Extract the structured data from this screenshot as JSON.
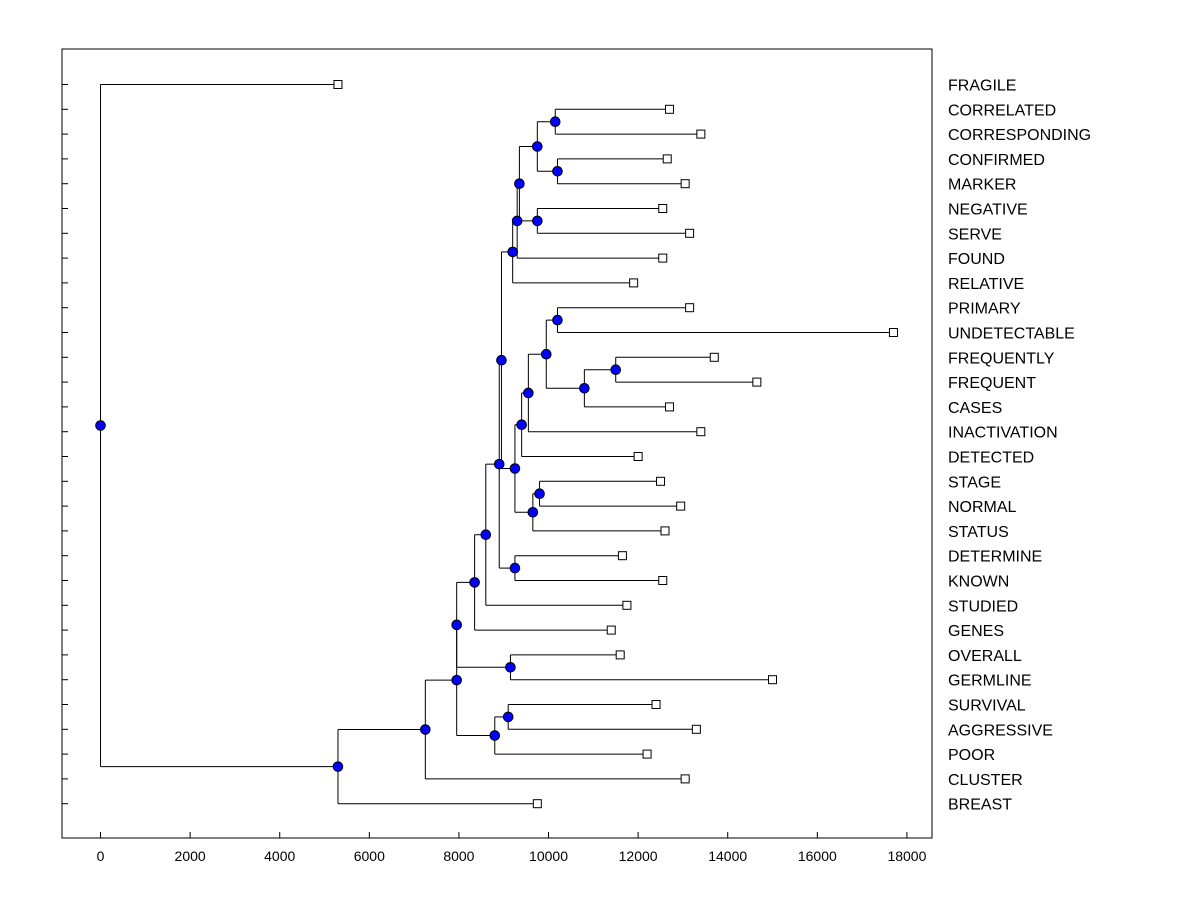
{
  "chart_data": {
    "type": "dendrogram",
    "orientation": "horizontal",
    "x_axis": {
      "range": [
        -860,
        18560
      ],
      "ticks": [
        0,
        2000,
        4000,
        6000,
        8000,
        10000,
        12000,
        14000,
        16000,
        18000
      ],
      "tick_labels": [
        "0",
        "2000",
        "4000",
        "6000",
        "8000",
        "10000",
        "12000",
        "14000",
        "16000",
        "18000"
      ]
    },
    "leaves": [
      {
        "label": "FRAGILE",
        "x": 5300
      },
      {
        "label": "CORRELATED",
        "x": 12700
      },
      {
        "label": "CORRESPONDING",
        "x": 13400
      },
      {
        "label": "CONFIRMED",
        "x": 12650
      },
      {
        "label": "MARKER",
        "x": 13050
      },
      {
        "label": "NEGATIVE",
        "x": 12550
      },
      {
        "label": "SERVE",
        "x": 13150
      },
      {
        "label": "FOUND",
        "x": 12550
      },
      {
        "label": "RELATIVE",
        "x": 11900
      },
      {
        "label": "PRIMARY",
        "x": 13150
      },
      {
        "label": "UNDETECTABLE",
        "x": 17700
      },
      {
        "label": "FREQUENTLY",
        "x": 13700
      },
      {
        "label": "FREQUENT",
        "x": 14650
      },
      {
        "label": "CASES",
        "x": 12700
      },
      {
        "label": "INACTIVATION",
        "x": 13400
      },
      {
        "label": "DETECTED",
        "x": 12000
      },
      {
        "label": "STAGE",
        "x": 12500
      },
      {
        "label": "NORMAL",
        "x": 12950
      },
      {
        "label": "STATUS",
        "x": 12600
      },
      {
        "label": "DETERMINE",
        "x": 11650
      },
      {
        "label": "KNOWN",
        "x": 12550
      },
      {
        "label": "STUDIED",
        "x": 11750
      },
      {
        "label": "GENES",
        "x": 11400
      },
      {
        "label": "OVERALL",
        "x": 11600
      },
      {
        "label": "GERMLINE",
        "x": 15000
      },
      {
        "label": "SURVIVAL",
        "x": 12400
      },
      {
        "label": "AGGRESSIVE",
        "x": 13300
      },
      {
        "label": "POOR",
        "x": 12200
      },
      {
        "label": "CLUSTER",
        "x": 13050
      },
      {
        "label": "BREAST",
        "x": 9750
      }
    ],
    "merges": [
      {
        "id": "n_cc",
        "x": 10150,
        "children": [
          "CORRELATED",
          "CORRESPONDING"
        ]
      },
      {
        "id": "n_cm",
        "x": 10200,
        "children": [
          "CONFIRMED",
          "MARKER"
        ]
      },
      {
        "id": "n_ccm",
        "x": 9750,
        "children": [
          "n_cc",
          "n_cm"
        ]
      },
      {
        "id": "n_ns",
        "x": 9750,
        "children": [
          "NEGATIVE",
          "SERVE"
        ]
      },
      {
        "id": "n_a1",
        "x": 9350,
        "children": [
          "n_ccm",
          "n_ns"
        ]
      },
      {
        "id": "n_a2",
        "x": 9300,
        "children": [
          "n_a1",
          "FOUND"
        ]
      },
      {
        "id": "n_a3",
        "x": 9200,
        "children": [
          "n_a2",
          "RELATIVE"
        ]
      },
      {
        "id": "n_pu",
        "x": 10200,
        "children": [
          "PRIMARY",
          "UNDETECTABLE"
        ]
      },
      {
        "id": "n_ff",
        "x": 11500,
        "children": [
          "FREQUENTLY",
          "FREQUENT"
        ]
      },
      {
        "id": "n_ffc",
        "x": 10800,
        "children": [
          "n_ff",
          "CASES"
        ]
      },
      {
        "id": "n_b1",
        "x": 9950,
        "children": [
          "n_pu",
          "n_ffc"
        ]
      },
      {
        "id": "n_b2",
        "x": 9550,
        "children": [
          "n_b1",
          "INACTIVATION"
        ]
      },
      {
        "id": "n_b3",
        "x": 9400,
        "children": [
          "n_b2",
          "DETECTED"
        ]
      },
      {
        "id": "n_sn",
        "x": 9800,
        "children": [
          "STAGE",
          "NORMAL"
        ]
      },
      {
        "id": "n_sns",
        "x": 9650,
        "children": [
          "n_sn",
          "STATUS"
        ]
      },
      {
        "id": "n_b4",
        "x": 9250,
        "children": [
          "n_b3",
          "n_sns"
        ]
      },
      {
        "id": "n_ab",
        "x": 8950,
        "children": [
          "n_a3",
          "n_b4"
        ]
      },
      {
        "id": "n_dk",
        "x": 9250,
        "children": [
          "DETERMINE",
          "KNOWN"
        ]
      },
      {
        "id": "n_c1",
        "x": 8900,
        "children": [
          "n_ab",
          "n_dk"
        ]
      },
      {
        "id": "n_c2",
        "x": 8600,
        "children": [
          "n_c1",
          "STUDIED"
        ]
      },
      {
        "id": "n_c3",
        "x": 8350,
        "children": [
          "n_c2",
          "GENES"
        ]
      },
      {
        "id": "n_og",
        "x": 9150,
        "children": [
          "OVERALL",
          "GERMLINE"
        ]
      },
      {
        "id": "n_c4",
        "x": 7950,
        "children": [
          "n_c3",
          "n_og"
        ]
      },
      {
        "id": "n_sa",
        "x": 9100,
        "children": [
          "SURVIVAL",
          "AGGRESSIVE"
        ]
      },
      {
        "id": "n_sap",
        "x": 8800,
        "children": [
          "n_sa",
          "POOR"
        ]
      },
      {
        "id": "n_c5",
        "x": 7950,
        "children": [
          "n_c4",
          "n_sap"
        ]
      },
      {
        "id": "n_c6",
        "x": 7250,
        "children": [
          "n_c5",
          "CLUSTER"
        ]
      },
      {
        "id": "n_c7",
        "x": 5300,
        "children": [
          "n_c6",
          "BREAST"
        ]
      },
      {
        "id": "n_root",
        "x": 0,
        "children": [
          "FRAGILE",
          "n_c7"
        ]
      }
    ],
    "colors": {
      "node_fill": "#0000ff",
      "line": "#000000",
      "leaf_fill": "#ffffff"
    }
  }
}
